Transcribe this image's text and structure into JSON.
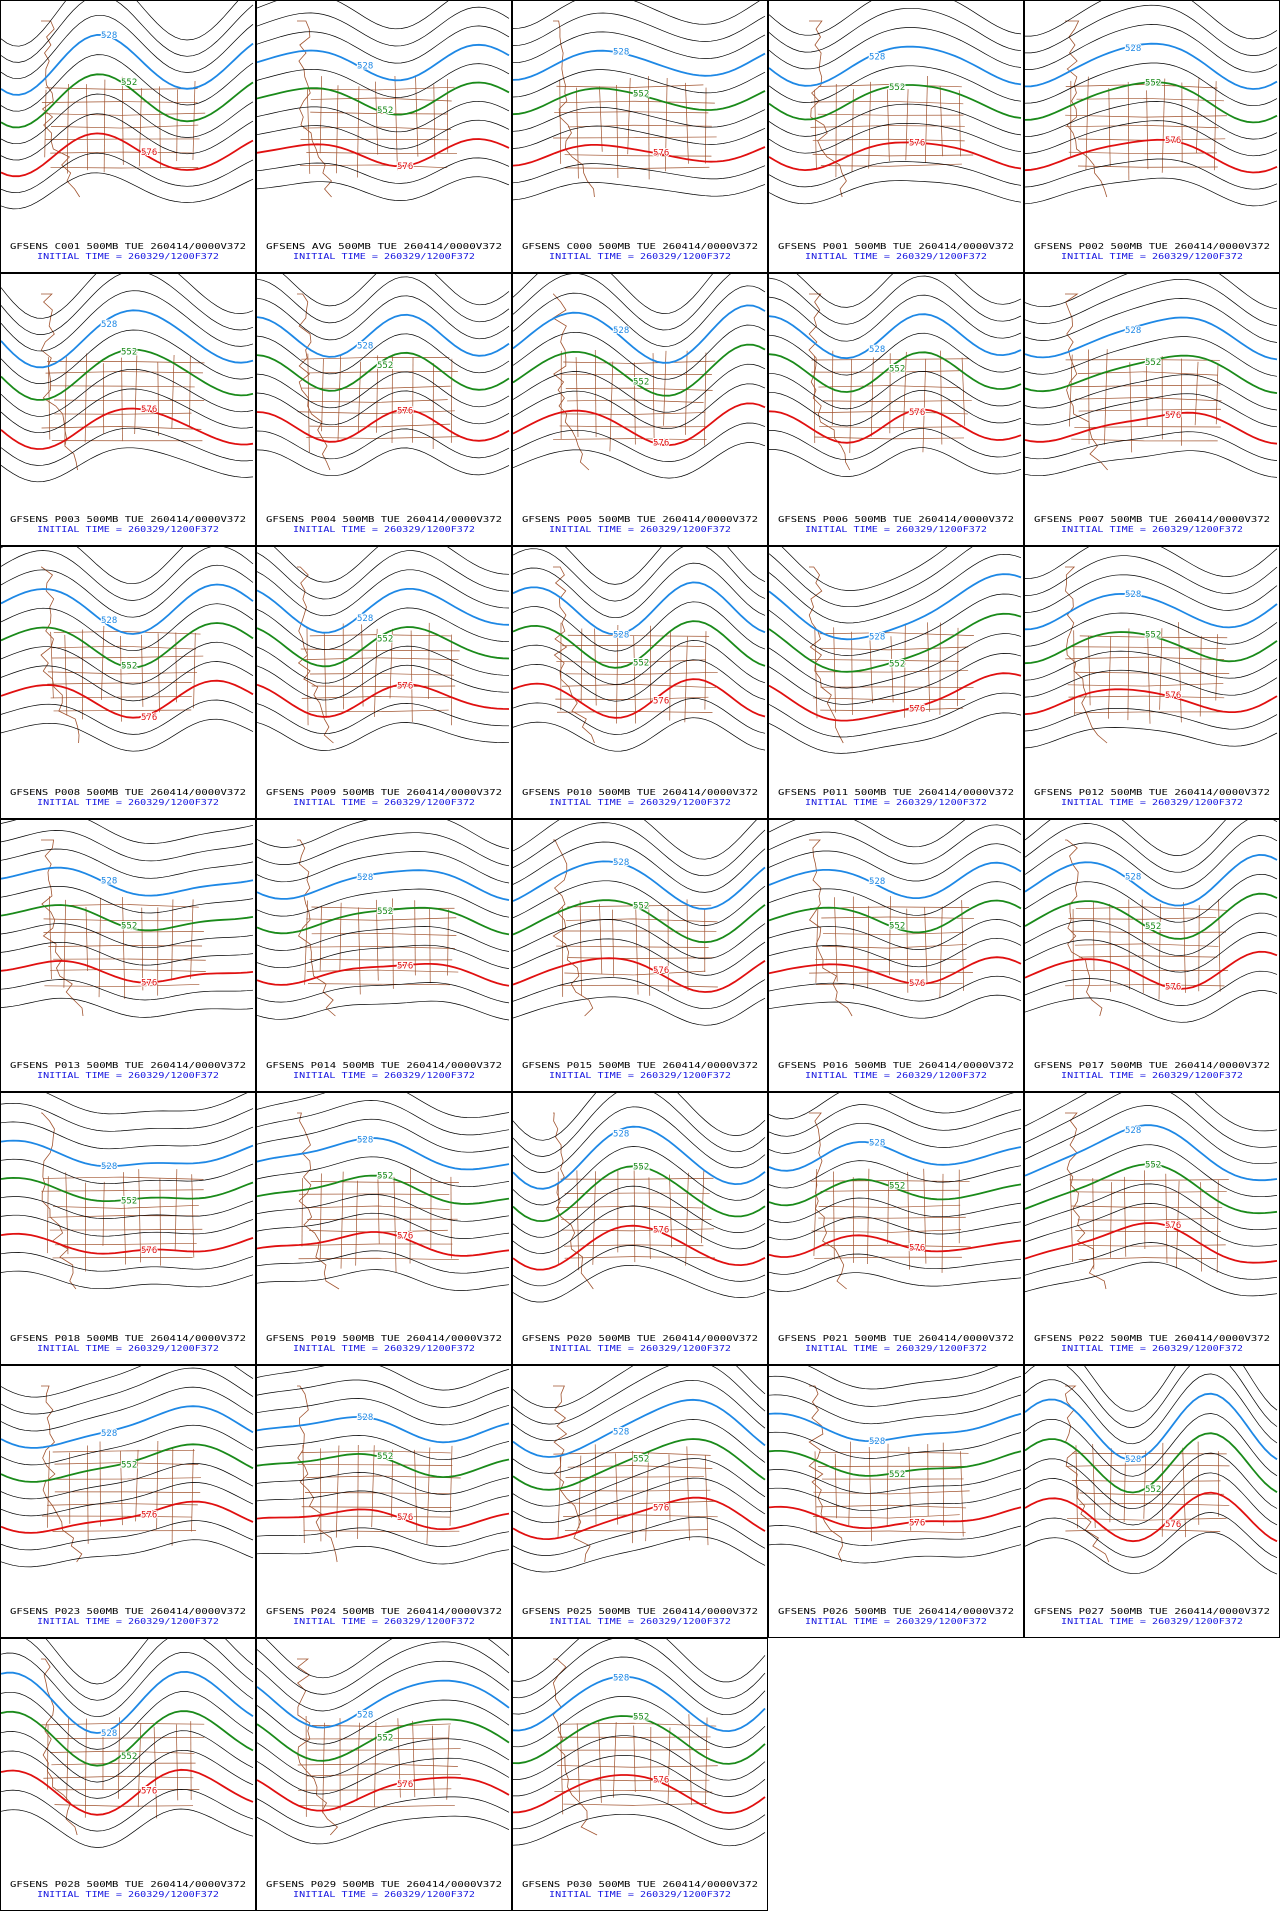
{
  "panels": [
    {
      "title": "GFSENS C001 500MB TUE 260414/0000V372",
      "subtitle": "INITIAL TIME = 260329/1200F372",
      "contour_labels": [
        "528",
        "552",
        "576"
      ]
    },
    {
      "title": "GFSENS AVG 500MB TUE 260414/0000V372",
      "subtitle": "INITIAL TIME = 260329/1200F372",
      "contour_labels": [
        "528",
        "552",
        "576"
      ]
    },
    {
      "title": "GFSENS C000 500MB TUE 260414/0000V372",
      "subtitle": "INITIAL TIME = 260329/1200F372",
      "contour_labels": [
        "528",
        "552",
        "576"
      ]
    },
    {
      "title": "GFSENS P001 500MB TUE 260414/0000V372",
      "subtitle": "INITIAL TIME = 260329/1200F372",
      "contour_labels": [
        "528",
        "552",
        "576"
      ]
    },
    {
      "title": "GFSENS P002 500MB TUE 260414/0000V372",
      "subtitle": "INITIAL TIME = 260329/1200F372",
      "contour_labels": [
        "528",
        "552",
        "576"
      ]
    },
    {
      "title": "GFSENS P003 500MB TUE 260414/0000V372",
      "subtitle": "INITIAL TIME = 260329/1200F372",
      "contour_labels": [
        "528",
        "552",
        "576"
      ]
    },
    {
      "title": "GFSENS P004 500MB TUE 260414/0000V372",
      "subtitle": "INITIAL TIME = 260329/1200F372",
      "contour_labels": [
        "528",
        "552",
        "576"
      ]
    },
    {
      "title": "GFSENS P005 500MB TUE 260414/0000V372",
      "subtitle": "INITIAL TIME = 260329/1200F372",
      "contour_labels": [
        "528",
        "552",
        "576"
      ]
    },
    {
      "title": "GFSENS P006 500MB TUE 260414/0000V372",
      "subtitle": "INITIAL TIME = 260329/1200F372",
      "contour_labels": [
        "528",
        "552",
        "576"
      ]
    },
    {
      "title": "GFSENS P007 500MB TUE 260414/0000V372",
      "subtitle": "INITIAL TIME = 260329/1200F372",
      "contour_labels": [
        "528",
        "552",
        "576"
      ]
    },
    {
      "title": "GFSENS P008 500MB TUE 260414/0000V372",
      "subtitle": "INITIAL TIME = 260329/1200F372",
      "contour_labels": [
        "528",
        "552",
        "576"
      ]
    },
    {
      "title": "GFSENS P009 500MB TUE 260414/0000V372",
      "subtitle": "INITIAL TIME = 260329/1200F372",
      "contour_labels": [
        "528",
        "552",
        "576"
      ]
    },
    {
      "title": "GFSENS P010 500MB TUE 260414/0000V372",
      "subtitle": "INITIAL TIME = 260329/1200F372",
      "contour_labels": [
        "528",
        "552",
        "576"
      ]
    },
    {
      "title": "GFSENS P011 500MB TUE 260414/0000V372",
      "subtitle": "INITIAL TIME = 260329/1200F372",
      "contour_labels": [
        "528",
        "552",
        "576"
      ]
    },
    {
      "title": "GFSENS P012 500MB TUE 260414/0000V372",
      "subtitle": "INITIAL TIME = 260329/1200F372",
      "contour_labels": [
        "528",
        "552",
        "576"
      ]
    },
    {
      "title": "GFSENS P013 500MB TUE 260414/0000V372",
      "subtitle": "INITIAL TIME = 260329/1200F372",
      "contour_labels": [
        "528",
        "552",
        "576"
      ]
    },
    {
      "title": "GFSENS P014 500MB TUE 260414/0000V372",
      "subtitle": "INITIAL TIME = 260329/1200F372",
      "contour_labels": [
        "528",
        "552",
        "576"
      ]
    },
    {
      "title": "GFSENS P015 500MB TUE 260414/0000V372",
      "subtitle": "INITIAL TIME = 260329/1200F372",
      "contour_labels": [
        "528",
        "552",
        "576"
      ]
    },
    {
      "title": "GFSENS P016 500MB TUE 260414/0000V372",
      "subtitle": "INITIAL TIME = 260329/1200F372",
      "contour_labels": [
        "528",
        "552",
        "576"
      ]
    },
    {
      "title": "GFSENS P017 500MB TUE 260414/0000V372",
      "subtitle": "INITIAL TIME = 260329/1200F372",
      "contour_labels": [
        "528",
        "552",
        "576"
      ]
    },
    {
      "title": "GFSENS P018 500MB TUE 260414/0000V372",
      "subtitle": "INITIAL TIME = 260329/1200F372",
      "contour_labels": [
        "528",
        "552",
        "576"
      ]
    },
    {
      "title": "GFSENS P019 500MB TUE 260414/0000V372",
      "subtitle": "INITIAL TIME = 260329/1200F372",
      "contour_labels": [
        "528",
        "552",
        "576"
      ]
    },
    {
      "title": "GFSENS P020 500MB TUE 260414/0000V372",
      "subtitle": "INITIAL TIME = 260329/1200F372",
      "contour_labels": [
        "528",
        "552",
        "576"
      ]
    },
    {
      "title": "GFSENS P021 500MB TUE 260414/0000V372",
      "subtitle": "INITIAL TIME = 260329/1200F372",
      "contour_labels": [
        "528",
        "552",
        "576"
      ]
    },
    {
      "title": "GFSENS P022 500MB TUE 260414/0000V372",
      "subtitle": "INITIAL TIME = 260329/1200F372",
      "contour_labels": [
        "528",
        "552",
        "576"
      ]
    },
    {
      "title": "GFSENS P023 500MB TUE 260414/0000V372",
      "subtitle": "INITIAL TIME = 260329/1200F372",
      "contour_labels": [
        "528",
        "552",
        "576"
      ]
    },
    {
      "title": "GFSENS P024 500MB TUE 260414/0000V372",
      "subtitle": "INITIAL TIME = 260329/1200F372",
      "contour_labels": [
        "528",
        "552",
        "576"
      ]
    },
    {
      "title": "GFSENS P025 500MB TUE 260414/0000V372",
      "subtitle": "INITIAL TIME = 260329/1200F372",
      "contour_labels": [
        "528",
        "552",
        "576"
      ]
    },
    {
      "title": "GFSENS P026 500MB TUE 260414/0000V372",
      "subtitle": "INITIAL TIME = 260329/1200F372",
      "contour_labels": [
        "528",
        "552",
        "576"
      ]
    },
    {
      "title": "GFSENS P027 500MB TUE 260414/0000V372",
      "subtitle": "INITIAL TIME = 260329/1200F372",
      "contour_labels": [
        "528",
        "552",
        "576"
      ]
    },
    {
      "title": "GFSENS P028 500MB TUE 260414/0000V372",
      "subtitle": "INITIAL TIME = 260329/1200F372",
      "contour_labels": [
        "528",
        "552",
        "576"
      ]
    },
    {
      "title": "GFSENS P029 500MB TUE 260414/0000V372",
      "subtitle": "INITIAL TIME = 260329/1200F372",
      "contour_labels": [
        "528",
        "552",
        "576"
      ]
    },
    {
      "title": "GFSENS P030 500MB TUE 260414/0000V372",
      "subtitle": "INITIAL TIME = 260329/1200F372",
      "contour_labels": [
        "528",
        "552",
        "576"
      ]
    }
  ]
}
